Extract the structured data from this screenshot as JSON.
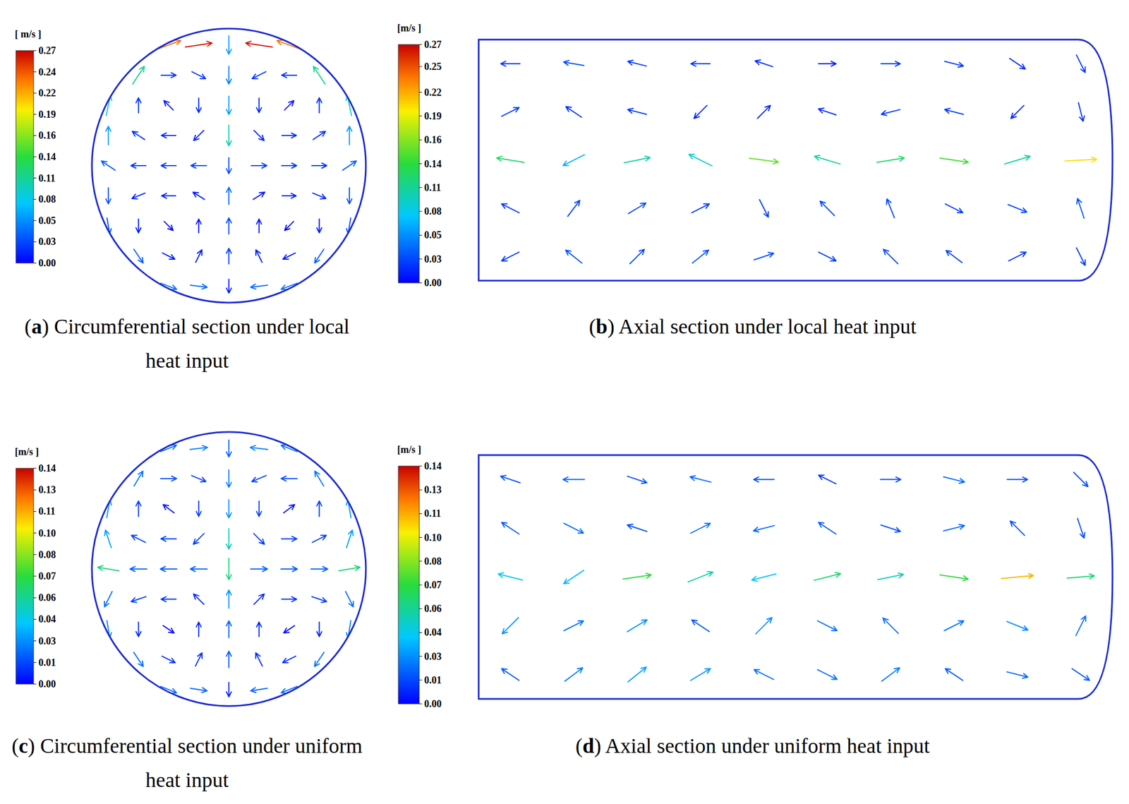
{
  "chart_data": [
    {
      "type": "quiver",
      "label": "(a)",
      "title": "Circumferential section under local heat input",
      "colorbar": {
        "title": "[ m/s ]",
        "range": [
          0,
          0.27
        ],
        "ticks": [
          {
            "value": 0,
            "label": "0.00"
          },
          {
            "value": 0.027,
            "label": "0.03"
          },
          {
            "value": 0.054,
            "label": "0.05"
          },
          {
            "value": 0.081,
            "label": "0.08"
          },
          {
            "value": 0.108,
            "label": "0.11"
          },
          {
            "value": 0.135,
            "label": "0.14"
          },
          {
            "value": 0.162,
            "label": "0.16"
          },
          {
            "value": 0.189,
            "label": "0.19"
          },
          {
            "value": 0.216,
            "label": "0.22"
          },
          {
            "value": 0.243,
            "label": "0.24"
          },
          0.27
        ]
      },
      "xlim": [
        -1,
        1
      ],
      "ylim": [
        -1,
        1
      ],
      "x": [
        -0.88,
        -0.66,
        -0.44,
        -0.22,
        0,
        0.22,
        0.44,
        0.66,
        0.88
      ],
      "y": [
        0.88,
        0.66,
        0.44,
        0.22,
        0,
        -0.22,
        -0.44,
        -0.66,
        -0.88
      ],
      "u": [
        [
          null,
          null,
          0.22,
          0.26,
          0,
          -0.26,
          -0.22,
          null,
          null
        ],
        [
          null,
          0.06,
          0.02,
          0.02,
          0,
          -0.02,
          -0.02,
          -0.06,
          null
        ],
        [
          0.02,
          0,
          -0.005,
          0,
          0,
          0,
          0.005,
          0,
          -0.02
        ],
        [
          0,
          -0.015,
          -0.015,
          -0.01,
          0,
          0.01,
          0.015,
          0.015,
          0
        ],
        [
          -0.03,
          -0.02,
          -0.02,
          -0.025,
          0,
          0.025,
          0.02,
          0.02,
          0.03
        ],
        [
          0,
          -0.012,
          -0.012,
          -0.008,
          0,
          0.008,
          0.012,
          0.012,
          0
        ],
        [
          0.005,
          0,
          0.003,
          0,
          0,
          0,
          -0.003,
          0,
          -0.005
        ],
        [
          null,
          0.02,
          0.01,
          0.005,
          0,
          -0.005,
          -0.01,
          -0.02,
          null
        ],
        [
          null,
          null,
          0.04,
          0.04,
          0,
          -0.04,
          -0.04,
          null,
          null
        ]
      ],
      "v": [
        [
          null,
          null,
          0.08,
          0.04,
          -0.06,
          0.04,
          0.08,
          null,
          null
        ],
        [
          null,
          0.09,
          0,
          -0.01,
          -0.05,
          -0.01,
          0,
          0.09,
          null
        ],
        [
          0.1,
          0.02,
          0.005,
          -0.015,
          -0.06,
          -0.015,
          0.005,
          0.02,
          0.1
        ],
        [
          0.06,
          0.01,
          0,
          -0.01,
          -0.1,
          -0.01,
          0,
          0.01,
          0.06
        ],
        [
          0.02,
          0,
          0,
          0,
          -0.03,
          0,
          0,
          0,
          0.02
        ],
        [
          -0.03,
          -0.005,
          0,
          0.005,
          0.04,
          0.005,
          0,
          -0.005,
          -0.03
        ],
        [
          -0.03,
          -0.01,
          -0.003,
          0.01,
          0.03,
          0.01,
          -0.003,
          -0.01,
          -0.03
        ],
        [
          null,
          -0.03,
          -0.005,
          0.01,
          0.025,
          0.01,
          -0.005,
          -0.03,
          null
        ],
        [
          null,
          null,
          -0.015,
          -0.005,
          -0.01,
          -0.005,
          -0.015,
          null,
          null
        ]
      ]
    },
    {
      "type": "quiver",
      "label": "(b)",
      "title": "Axial section under local heat input",
      "colorbar": {
        "title": "[m/s ]",
        "range": [
          0,
          0.27
        ],
        "ticks": [
          {
            "value": 0,
            "label": "0.00"
          },
          {
            "value": 0.027,
            "label": "0.03"
          },
          {
            "value": 0.054,
            "label": "0.05"
          },
          {
            "value": 0.081,
            "label": "0.08"
          },
          {
            "value": 0.108,
            "label": "0.11"
          },
          {
            "value": 0.135,
            "label": "0.14"
          },
          {
            "value": 0.162,
            "label": "0.16"
          },
          {
            "value": 0.189,
            "label": "0.19"
          },
          {
            "value": 0.216,
            "label": "0.22"
          },
          {
            "value": 0.245,
            "label": "0.25"
          },
          0.27
        ]
      },
      "xlim": [
        0,
        1
      ],
      "ylim": [
        -1,
        1
      ],
      "x": [
        0.05,
        0.15,
        0.25,
        0.35,
        0.45,
        0.55,
        0.65,
        0.75,
        0.85,
        0.95
      ],
      "y": [
        0.8,
        0.4,
        0,
        -0.4,
        -0.8
      ],
      "u": [
        [
          -0.02,
          -0.03,
          -0.02,
          -0.02,
          -0.015,
          0.01,
          0.02,
          0.02,
          0.015,
          0.01
        ],
        [
          0.02,
          -0.015,
          -0.02,
          -0.01,
          0.01,
          -0.015,
          -0.02,
          -0.02,
          -0.01,
          0.005
        ],
        [
          -0.12,
          -0.06,
          0.1,
          -0.08,
          0.15,
          -0.1,
          0.12,
          0.14,
          0.1,
          0.2
        ],
        [
          -0.02,
          0.015,
          0.025,
          0.02,
          0.01,
          -0.02,
          -0.01,
          0.02,
          0.025,
          -0.01
        ],
        [
          -0.02,
          -0.025,
          0.02,
          0.025,
          0.03,
          0.02,
          -0.02,
          -0.02,
          0.02,
          0.01
        ]
      ],
      "v": [
        [
          0,
          0.005,
          0.005,
          0,
          0.005,
          0,
          0,
          -0.005,
          -0.01,
          -0.02
        ],
        [
          0.01,
          0.01,
          0.005,
          -0.01,
          0.01,
          0.005,
          -0.005,
          0.005,
          -0.01,
          -0.02
        ],
        [
          0.02,
          -0.03,
          0.02,
          0.04,
          -0.02,
          0.03,
          0.02,
          -0.02,
          0.03,
          0.01
        ],
        [
          0.01,
          0.02,
          0.015,
          0.01,
          -0.02,
          0.02,
          0.025,
          -0.01,
          -0.01,
          0.03
        ],
        [
          -0.01,
          0.02,
          0.02,
          0.02,
          0.01,
          -0.01,
          0.02,
          0.015,
          0.01,
          -0.02
        ]
      ]
    },
    {
      "type": "quiver",
      "label": "(c)",
      "title": "Circumferential section under uniform heat input",
      "colorbar": {
        "title": "[m/s ]",
        "range": [
          0,
          0.14
        ],
        "ticks": [
          {
            "value": 0,
            "label": "0.00"
          },
          {
            "value": 0.014,
            "label": "0.01"
          },
          {
            "value": 0.028,
            "label": "0.03"
          },
          {
            "value": 0.042,
            "label": "0.04"
          },
          {
            "value": 0.056,
            "label": "0.06"
          },
          0.07,
          {
            "value": 0.084,
            "label": "0.08"
          },
          {
            "value": 0.098,
            "label": "0.10"
          },
          {
            "value": 0.112,
            "label": "0.11"
          },
          {
            "value": 0.126,
            "label": "0.13"
          },
          0.14
        ]
      },
      "xlim": [
        -1,
        1
      ],
      "ylim": [
        -1,
        1
      ],
      "x": [
        -0.88,
        -0.66,
        -0.44,
        -0.22,
        0,
        0.22,
        0.44,
        0.66,
        0.88
      ],
      "y": [
        0.88,
        0.66,
        0.44,
        0.22,
        0,
        -0.22,
        -0.44,
        -0.66,
        -0.88
      ],
      "u": [
        [
          null,
          null,
          0.02,
          0.025,
          0,
          -0.025,
          -0.02,
          null,
          null
        ],
        [
          null,
          0.012,
          0.015,
          0.012,
          0,
          -0.012,
          -0.015,
          -0.012,
          null
        ],
        [
          0.005,
          0,
          -0.004,
          0,
          0,
          0,
          0.004,
          0,
          -0.005
        ],
        [
          -0.01,
          -0.012,
          -0.012,
          -0.008,
          0,
          0.008,
          0.012,
          0.012,
          0.01
        ],
        [
          -0.06,
          -0.02,
          -0.018,
          -0.02,
          0,
          0.02,
          0.018,
          0.02,
          0.06
        ],
        [
          -0.01,
          -0.012,
          -0.01,
          -0.006,
          0,
          0.006,
          0.01,
          0.012,
          0.01
        ],
        [
          0.004,
          0,
          0.003,
          0,
          0,
          0,
          -0.003,
          0,
          -0.004
        ],
        [
          null,
          0.012,
          0.008,
          0.004,
          0,
          -0.004,
          -0.008,
          -0.012,
          null
        ],
        [
          null,
          null,
          0.02,
          0.02,
          0,
          -0.02,
          -0.02,
          null,
          null
        ]
      ],
      "v": [
        [
          null,
          null,
          0.008,
          0.003,
          -0.02,
          0.003,
          0.008,
          null,
          null
        ],
        [
          null,
          0.02,
          0,
          -0.005,
          -0.025,
          -0.005,
          0,
          0.02,
          null
        ],
        [
          0.03,
          0.012,
          0.003,
          -0.012,
          -0.03,
          -0.012,
          0.003,
          0.012,
          0.03
        ],
        [
          0.03,
          0.006,
          0,
          -0.008,
          -0.05,
          -0.008,
          0,
          0.006,
          0.03
        ],
        [
          0.01,
          0,
          0,
          0,
          -0.06,
          0,
          0,
          0,
          0.01
        ],
        [
          -0.02,
          -0.004,
          0,
          0.006,
          0.03,
          0.006,
          0,
          -0.004,
          -0.02
        ],
        [
          -0.025,
          -0.008,
          -0.002,
          0.008,
          0.02,
          0.008,
          -0.002,
          -0.008,
          -0.025
        ],
        [
          null,
          -0.018,
          -0.004,
          0.008,
          0.018,
          0.008,
          -0.004,
          -0.018,
          null
        ],
        [
          null,
          null,
          -0.008,
          -0.003,
          -0.008,
          -0.003,
          -0.008,
          null,
          null
        ]
      ]
    },
    {
      "type": "quiver",
      "label": "(d)",
      "title": "Axial section under uniform heat input",
      "colorbar": {
        "title": "[m/s ]",
        "range": [
          0,
          0.14
        ],
        "ticks": [
          {
            "value": 0,
            "label": "0.00"
          },
          {
            "value": 0.014,
            "label": "0.01"
          },
          {
            "value": 0.028,
            "label": "0.03"
          },
          {
            "value": 0.042,
            "label": "0.04"
          },
          {
            "value": 0.056,
            "label": "0.06"
          },
          0.07,
          {
            "value": 0.084,
            "label": "0.08"
          },
          {
            "value": 0.098,
            "label": "0.10"
          },
          {
            "value": 0.112,
            "label": "0.11"
          },
          {
            "value": 0.126,
            "label": "0.13"
          },
          0.14
        ]
      },
      "xlim": [
        0,
        1
      ],
      "ylim": [
        -1,
        1
      ],
      "x": [
        0.05,
        0.15,
        0.25,
        0.35,
        0.45,
        0.55,
        0.65,
        0.75,
        0.85,
        0.95
      ],
      "y": [
        0.8,
        0.4,
        0,
        -0.4,
        -0.8
      ],
      "u": [
        [
          -0.015,
          -0.02,
          0.015,
          -0.02,
          -0.015,
          -0.01,
          0.015,
          0.02,
          0.015,
          0.01
        ],
        [
          -0.015,
          0.02,
          -0.015,
          0.02,
          -0.02,
          -0.015,
          0.015,
          0.02,
          -0.01,
          0.005
        ],
        [
          -0.04,
          -0.03,
          0.07,
          0.05,
          -0.04,
          0.06,
          0.05,
          0.07,
          0.11,
          0.06
        ],
        [
          -0.02,
          0.02,
          0.025,
          -0.015,
          0.02,
          0.02,
          -0.015,
          0.02,
          0.025,
          0.01
        ],
        [
          -0.015,
          0.02,
          0.025,
          0.025,
          -0.02,
          0.02,
          0.02,
          -0.015,
          0.02,
          0.015
        ]
      ],
      "v": [
        [
          0.005,
          0,
          -0.005,
          0.005,
          0,
          0.005,
          0,
          -0.005,
          0,
          -0.01
        ],
        [
          0.01,
          -0.01,
          0.005,
          0.01,
          -0.005,
          0.01,
          -0.005,
          0.005,
          0.01,
          -0.015
        ],
        [
          0.01,
          -0.02,
          0.01,
          0.02,
          -0.01,
          0.015,
          0.01,
          -0.01,
          0.01,
          0.005
        ],
        [
          -0.02,
          0.01,
          0.015,
          0.01,
          0.02,
          -0.01,
          0.015,
          0.01,
          -0.01,
          0.02
        ],
        [
          0.01,
          0.015,
          0.02,
          0.015,
          0.01,
          -0.01,
          0.015,
          0.01,
          -0.005,
          -0.01
        ]
      ]
    }
  ]
}
